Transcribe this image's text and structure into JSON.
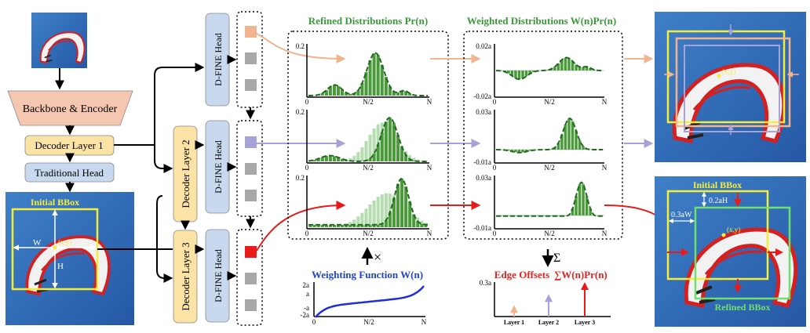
{
  "colors": {
    "green_title": "#3a9a3a",
    "red_title": "#e8201f",
    "blue_title": "#1f44c8",
    "orange_arrow": "#f2b48e",
    "lavender_arrow": "#a8a3d6",
    "red_arrow": "#e81a1a",
    "bar_dark": "#4a9a3a",
    "bar_light": "#b5ddb0",
    "curve": "#1e6a1e",
    "backbone_fill": "#f6c7b0",
    "decoder_fill": "#fbe3a6",
    "head_fill": "#c8d9ef",
    "sky": "#2f6bb8",
    "yellow_box": "#f4ee39",
    "green_box": "#6ee06e"
  },
  "left": {
    "backbone": "Backbone & Encoder",
    "decoder1": "Decoder Layer 1",
    "trad_head": "Traditional Head",
    "initial_bbox": "Initial BBox",
    "w_label": "W",
    "h_label": "H",
    "center_label": "(x,y)"
  },
  "middle": {
    "decoder2": "Decoder Layer 2",
    "decoder3": "Decoder Layer 3",
    "head": "D-FINE Head"
  },
  "refined": {
    "title": "Refined Distributions Pr(n)",
    "y_tick": "0.2",
    "x_ticks": [
      "0",
      "N/2",
      "N"
    ]
  },
  "weighted": {
    "title": "Weighted Distributions W(n)Pr(n)",
    "panels": [
      {
        "top": "0.02a",
        "bottom": "-0.02a"
      },
      {
        "top": "0.03a",
        "bottom": "-0.01a"
      },
      {
        "top": "0.03a",
        "bottom": "-0.01a"
      }
    ],
    "x_ticks": [
      "0",
      "N/2",
      "N"
    ]
  },
  "weighting": {
    "title": "Weighting Function W(n)",
    "y_ticks": [
      "2a",
      "a",
      "-a",
      "-2a"
    ],
    "x_ticks": [
      "0",
      "N/2",
      "N"
    ],
    "times": "×"
  },
  "offsets": {
    "title": "Edge Offsets",
    "formula": "∑W(n)Pr(n)",
    "sigma": "Σ",
    "y_tick": "0.3a",
    "layers": [
      "Layer 1",
      "Layer 2",
      "Layer 3"
    ],
    "values": [
      0.09,
      0.19,
      0.3
    ]
  },
  "right": {
    "center_label": "(x,y)",
    "initial_bbox": "Initial BBox",
    "refined_bbox": "Refined BBox",
    "off_h": "0.2aH",
    "off_w": "0.3aW"
  }
}
